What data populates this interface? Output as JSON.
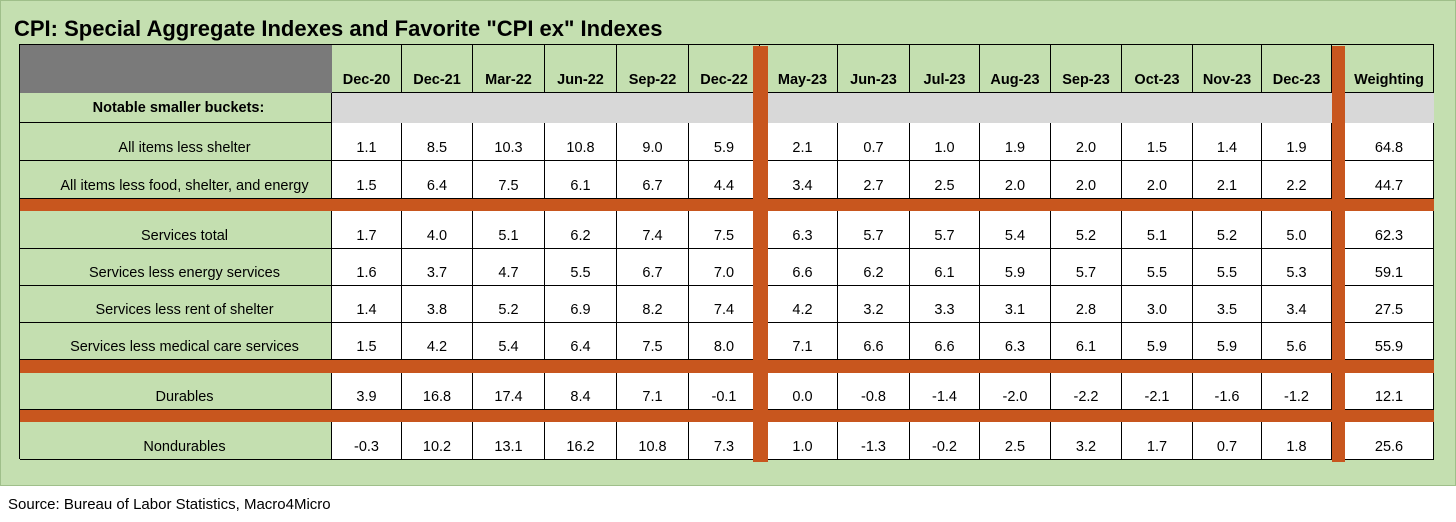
{
  "title": "CPI: Special Aggregate Indexes and Favorite \"CPI ex\" Indexes",
  "source": "Source: Bureau of Labor Statistics, Macro4Micro",
  "colors": {
    "frame": "#c4dfb0",
    "divider": "#c8561e",
    "header_block": "#7a7a7a",
    "blank_row": "#d8d8d8"
  },
  "chart_data": {
    "type": "table",
    "section_label": "Notable smaller buckets:",
    "columns": [
      "Dec-20",
      "Dec-21",
      "Mar-22",
      "Jun-22",
      "Sep-22",
      "Dec-22",
      "May-23",
      "Jun-23",
      "Jul-23",
      "Aug-23",
      "Sep-23",
      "Oct-23",
      "Nov-23",
      "Dec-23"
    ],
    "weighting_label": "Weighting",
    "rows": [
      {
        "label": "All items less shelter",
        "values": [
          "1.1",
          "8.5",
          "10.3",
          "10.8",
          "9.0",
          "5.9",
          "2.1",
          "0.7",
          "1.0",
          "1.9",
          "2.0",
          "1.5",
          "1.4",
          "1.9"
        ],
        "weighting": "64.8"
      },
      {
        "label": "All items less food, shelter, and energy",
        "values": [
          "1.5",
          "6.4",
          "7.5",
          "6.1",
          "6.7",
          "4.4",
          "3.4",
          "2.7",
          "2.5",
          "2.0",
          "2.0",
          "2.0",
          "2.1",
          "2.2"
        ],
        "weighting": "44.7"
      },
      {
        "label": "Services total",
        "values": [
          "1.7",
          "4.0",
          "5.1",
          "6.2",
          "7.4",
          "7.5",
          "6.3",
          "5.7",
          "5.7",
          "5.4",
          "5.2",
          "5.1",
          "5.2",
          "5.0"
        ],
        "weighting": "62.3"
      },
      {
        "label": "Services less energy services",
        "values": [
          "1.6",
          "3.7",
          "4.7",
          "5.5",
          "6.7",
          "7.0",
          "6.6",
          "6.2",
          "6.1",
          "5.9",
          "5.7",
          "5.5",
          "5.5",
          "5.3"
        ],
        "weighting": "59.1"
      },
      {
        "label": "Services less rent of shelter",
        "values": [
          "1.4",
          "3.8",
          "5.2",
          "6.9",
          "8.2",
          "7.4",
          "4.2",
          "3.2",
          "3.3",
          "3.1",
          "2.8",
          "3.0",
          "3.5",
          "3.4"
        ],
        "weighting": "27.5"
      },
      {
        "label": "Services less medical care services",
        "values": [
          "1.5",
          "4.2",
          "5.4",
          "6.4",
          "7.5",
          "8.0",
          "7.1",
          "6.6",
          "6.6",
          "6.3",
          "6.1",
          "5.9",
          "5.9",
          "5.6"
        ],
        "weighting": "55.9"
      },
      {
        "label": "Durables",
        "values": [
          "3.9",
          "16.8",
          "17.4",
          "8.4",
          "7.1",
          "-0.1",
          "0.0",
          "-0.8",
          "-1.4",
          "-2.0",
          "-2.2",
          "-2.1",
          "-1.6",
          "-1.2"
        ],
        "weighting": "12.1"
      },
      {
        "label": "Nondurables",
        "values": [
          "-0.3",
          "10.2",
          "13.1",
          "16.2",
          "10.8",
          "7.3",
          "1.0",
          "-1.3",
          "-0.2",
          "2.5",
          "3.2",
          "1.7",
          "0.7",
          "1.8"
        ],
        "weighting": "25.6"
      }
    ]
  }
}
